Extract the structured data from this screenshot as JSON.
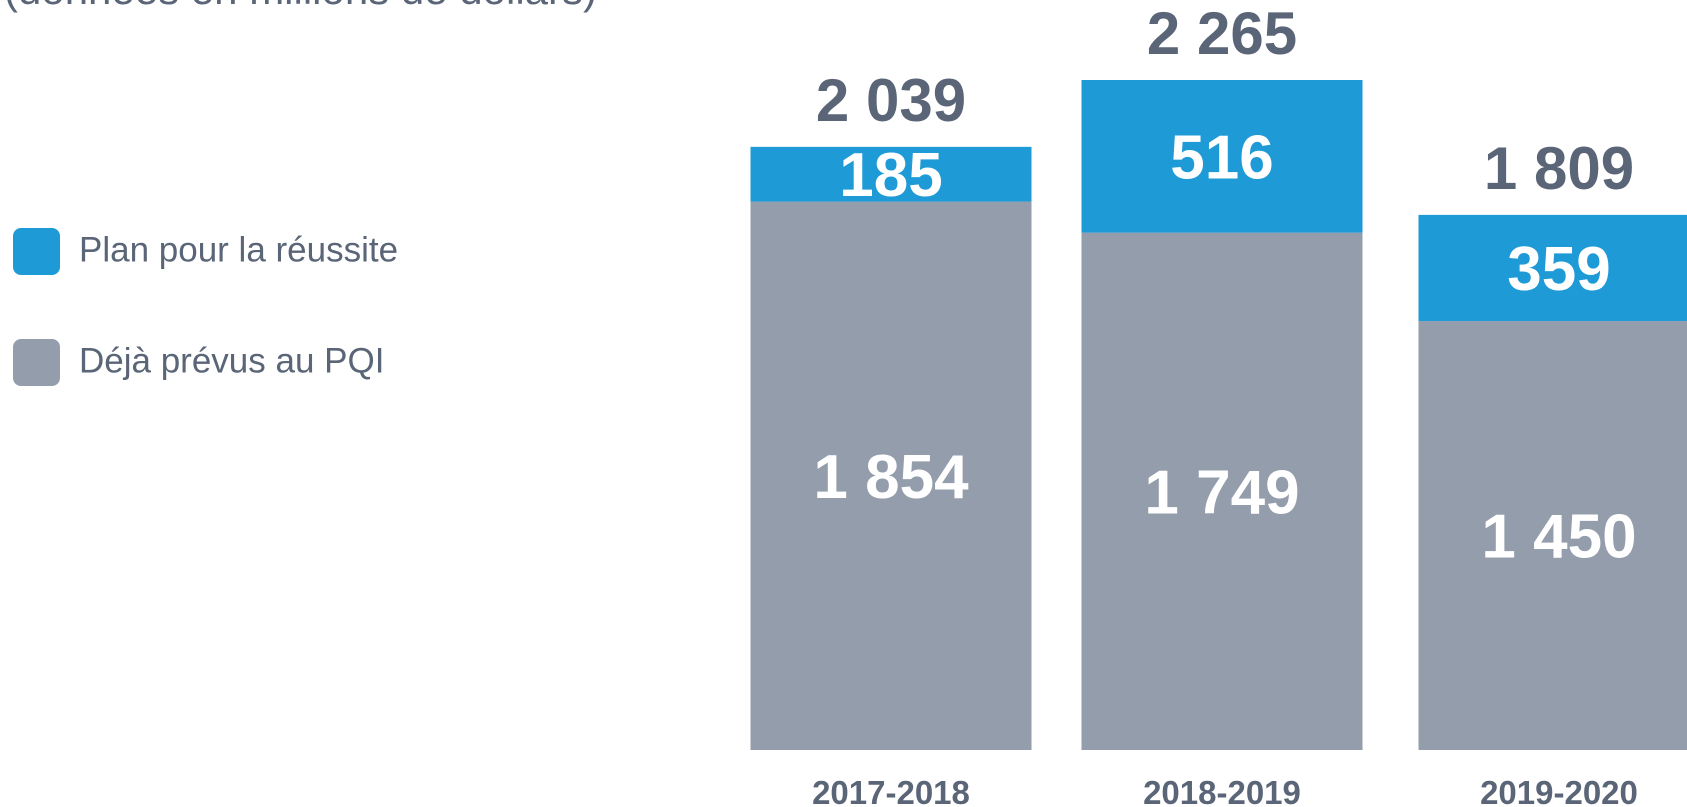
{
  "chart_data": {
    "type": "stacked_bar",
    "subtitle": "(données en millions de dollars)",
    "categories": [
      "2017-2018",
      "2018-2019",
      "2019-2020"
    ],
    "series": [
      {
        "name": "Déjà prévus au PQI",
        "color": "#949dab",
        "values": [
          1854,
          1749,
          1450
        ],
        "value_labels": [
          "1 854",
          "1 749",
          "1 450"
        ]
      },
      {
        "name": "Plan pour la réussite",
        "color": "#1e9ad6",
        "values": [
          185,
          516,
          359
        ],
        "value_labels": [
          "185",
          "516",
          "359"
        ]
      }
    ],
    "totals": {
      "values": [
        2039,
        2265,
        1809
      ],
      "value_labels": [
        "2 039",
        "2 265",
        "1 809"
      ]
    }
  }
}
